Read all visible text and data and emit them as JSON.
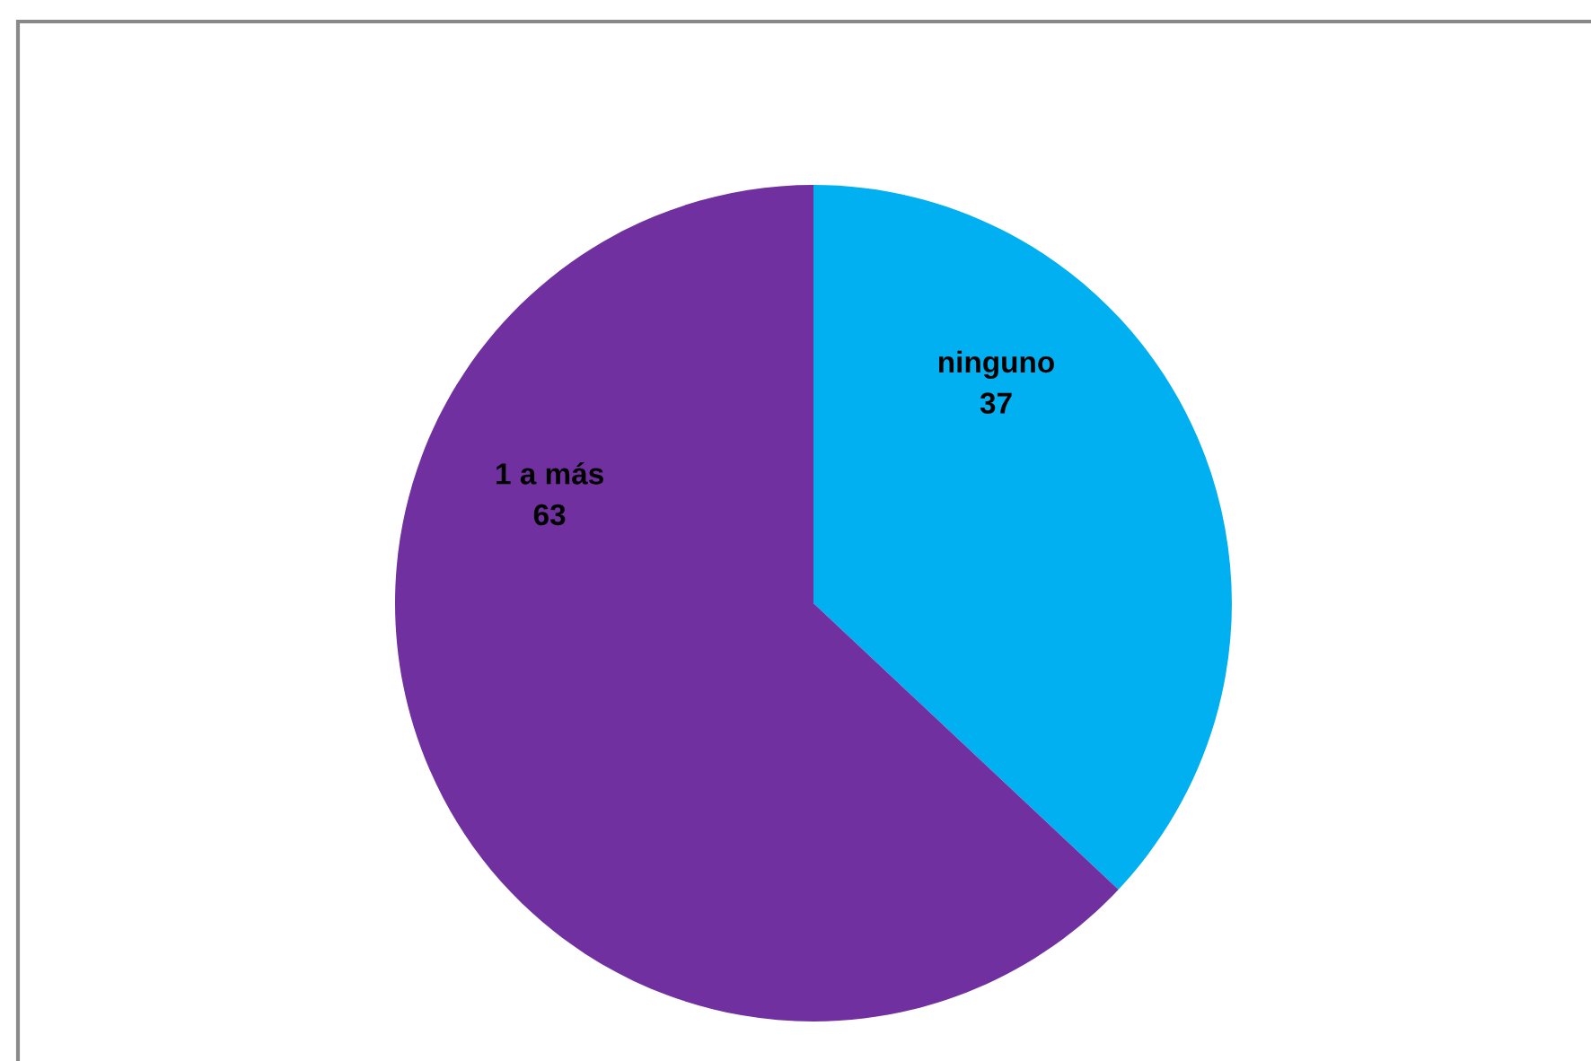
{
  "chart_data": {
    "type": "pie",
    "categories": [
      "ninguno",
      "1 a más"
    ],
    "values": [
      37,
      63
    ],
    "colors": [
      "#00b0f0",
      "#7030a0"
    ],
    "data_labels": true
  }
}
